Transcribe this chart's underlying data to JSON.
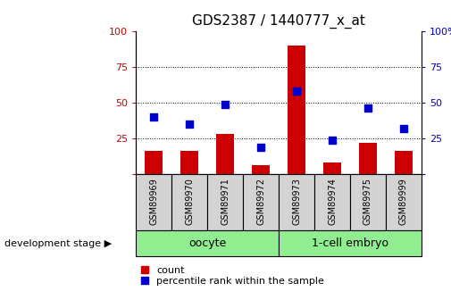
{
  "title": "GDS2387 / 1440777_x_at",
  "samples": [
    "GSM89969",
    "GSM89970",
    "GSM89971",
    "GSM89972",
    "GSM89973",
    "GSM89974",
    "GSM89975",
    "GSM89999"
  ],
  "counts": [
    16,
    16,
    28,
    6,
    90,
    8,
    22,
    16
  ],
  "percentile_ranks": [
    40,
    35,
    49,
    19,
    58,
    24,
    46,
    32
  ],
  "bar_color": "#cc0000",
  "dot_color": "#0000cc",
  "ylim": [
    0,
    100
  ],
  "yticks": [
    0,
    25,
    50,
    75,
    100
  ],
  "bg_plot": "#ffffff",
  "bg_xtick": "#d3d3d3",
  "bg_group": "#90ee90",
  "bar_width": 0.5,
  "dot_size": 35,
  "legend_count_label": "count",
  "legend_percentile_label": "percentile rank within the sample",
  "dev_stage_label": "development stage",
  "left_tick_color": "#cc0000",
  "right_tick_color": "#0000cc",
  "title_fontsize": 11,
  "groups": [
    {
      "label": "oocyte",
      "start": 0,
      "end": 3
    },
    {
      "label": "1-cell embryo",
      "start": 4,
      "end": 7
    }
  ]
}
